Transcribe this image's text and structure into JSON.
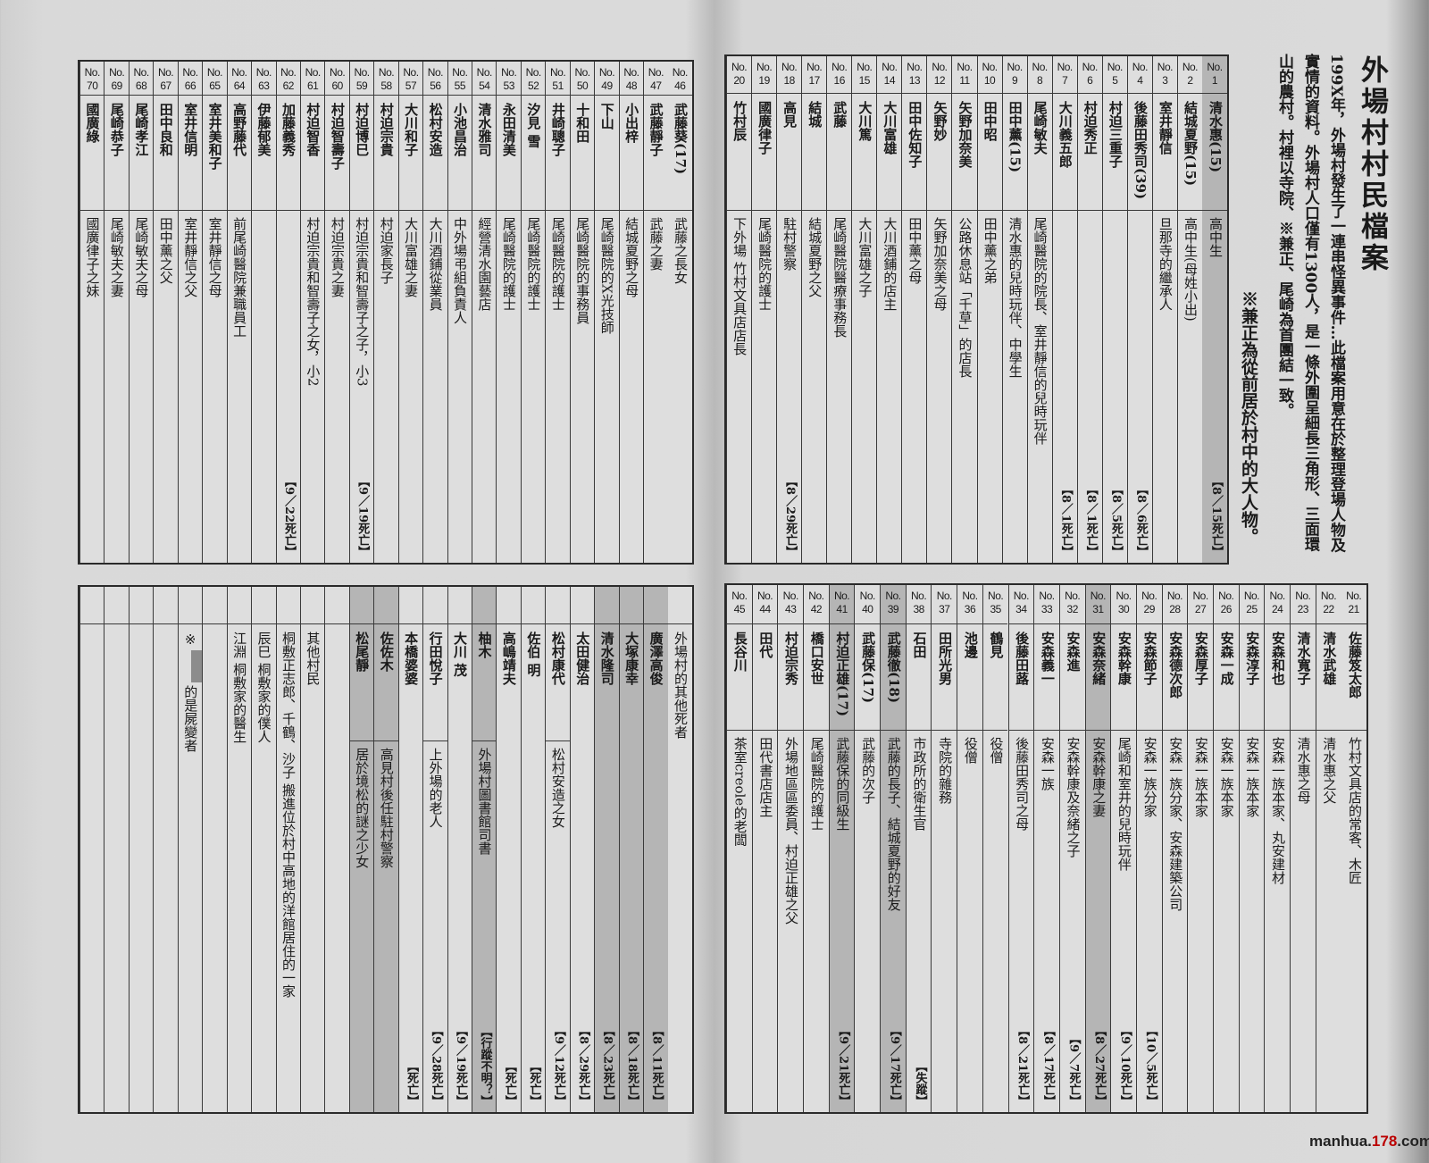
{
  "header": {
    "title": "外場村村民檔案",
    "intro": "199X年，外場村發生了一連串怪異事件…此檔案用意在於整理登場人物及實情的資料。外場村人口僅有1300人，是一條外圍呈細長三角形、三面環山的農村。村裡以寺院、※兼正、尾崎為首團結一致。",
    "note": "※兼正為從前居於村中的大人物。"
  },
  "colors": {
    "shaded": "#b5b5b5",
    "paper": "#dadada",
    "line": "#3a3a3a"
  },
  "tables": {
    "top_right": [
      {
        "no": "No.\n1",
        "name": "清水惠(15)",
        "role": "高中生",
        "death": "【8／15死亡】",
        "shaded": true
      },
      {
        "no": "No.\n2",
        "name": "結城夏野(15)",
        "role": "高中生(母姓小出)"
      },
      {
        "no": "No.\n3",
        "name": "室井靜信",
        "role": "旦那寺的繼承人"
      },
      {
        "no": "No.\n4",
        "name": "後藤田秀司(39)",
        "role": "",
        "death": "【8／6死亡】"
      },
      {
        "no": "No.\n5",
        "name": "村迫三重子",
        "role": "",
        "death": "【8／5死亡】"
      },
      {
        "no": "No.\n6",
        "name": "村迫秀正",
        "role": "",
        "death": "【8／1死亡】"
      },
      {
        "no": "No.\n7",
        "name": "大川義五郎",
        "role": "",
        "death": "【8／1死亡】"
      },
      {
        "no": "No.\n8",
        "name": "尾崎敏夫",
        "role": "尾崎醫院的院長、室井靜信的兒時玩伴"
      },
      {
        "no": "No.\n9",
        "name": "田中薰(15)",
        "role": "清水惠的兒時玩伴、中學生"
      },
      {
        "no": "No.\n10",
        "name": "田中昭",
        "role": "田中薰之弟"
      },
      {
        "no": "No.\n11",
        "name": "矢野加奈美",
        "role": "公路休息站「千草」的店長"
      },
      {
        "no": "No.\n12",
        "name": "矢野妙",
        "role": "矢野加奈美之母"
      },
      {
        "no": "No.\n13",
        "name": "田中佐知子",
        "role": "田中薰之母"
      },
      {
        "no": "No.\n14",
        "name": "大川富雄",
        "role": "大川酒鋪的店主"
      },
      {
        "no": "No.\n15",
        "name": "大川篤",
        "role": "大川富雄之子"
      },
      {
        "no": "No.\n16",
        "name": "武藤",
        "role": "尾崎醫院醫療事務長"
      },
      {
        "no": "No.\n17",
        "name": "結城",
        "role": "結城夏野之父"
      },
      {
        "no": "No.\n18",
        "name": "高見",
        "role": "駐村警察",
        "death": "【8／29死亡】"
      },
      {
        "no": "No.\n19",
        "name": "國廣律子",
        "role": "尾崎醫院的護士"
      },
      {
        "no": "No.\n20",
        "name": "竹村辰",
        "role": "下外場 竹村文具店店長"
      }
    ],
    "top_left": [
      {
        "no": "No.\n46",
        "name": "武藤葵(17)",
        "role": "武藤之長女"
      },
      {
        "no": "No.\n47",
        "name": "武藤靜子",
        "role": "武藤之妻"
      },
      {
        "no": "No.\n48",
        "name": "小出梓",
        "role": "結城夏野之母"
      },
      {
        "no": "No.\n49",
        "name": "下山",
        "role": "尾崎醫院的X光技師"
      },
      {
        "no": "No.\n50",
        "name": "十和田",
        "role": "尾崎醫院的事務員"
      },
      {
        "no": "No.\n51",
        "name": "井崎聰子",
        "role": "尾崎醫院的護士"
      },
      {
        "no": "No.\n52",
        "name": "汐見 雪",
        "role": "尾崎醫院的護士"
      },
      {
        "no": "No.\n53",
        "name": "永田清美",
        "role": "尾崎醫院的護士"
      },
      {
        "no": "No.\n54",
        "name": "清水雅司",
        "role": "經營清水園藝店"
      },
      {
        "no": "No.\n55",
        "name": "小池昌治",
        "role": "中外場弔組負責人"
      },
      {
        "no": "No.\n56",
        "name": "松村安造",
        "role": "大川酒鋪從業員"
      },
      {
        "no": "No.\n57",
        "name": "大川和子",
        "role": "大川富雄之妻"
      },
      {
        "no": "No.\n58",
        "name": "村迫宗貴",
        "role": "村迫家長子"
      },
      {
        "no": "No.\n59",
        "name": "村迫博巳",
        "role": "村迫宗貴和智壽子之子，小3",
        "death": "【9／19死亡】"
      },
      {
        "no": "No.\n60",
        "name": "村迫智壽子",
        "role": "村迫宗貴之妻"
      },
      {
        "no": "No.\n61",
        "name": "村迫智香",
        "role": "村迫宗貴和智壽子之女，小2"
      },
      {
        "no": "No.\n62",
        "name": "加藤義秀",
        "role": "",
        "death": "【9／22死亡】"
      },
      {
        "no": "No.\n63",
        "name": "伊藤郁美",
        "role": ""
      },
      {
        "no": "No.\n64",
        "name": "高野藤代",
        "role": "前尾崎醫院兼職員工"
      },
      {
        "no": "No.\n65",
        "name": "室井美和子",
        "role": "室井靜信之母"
      },
      {
        "no": "No.\n66",
        "name": "室井信明",
        "role": "室井靜信之父"
      },
      {
        "no": "No.\n67",
        "name": "田中良和",
        "role": "田中薰之父"
      },
      {
        "no": "No.\n68",
        "name": "尾崎孝江",
        "role": "尾崎敏夫之母"
      },
      {
        "no": "No.\n69",
        "name": "尾崎恭子",
        "role": "尾崎敏夫之妻"
      },
      {
        "no": "No.\n70",
        "name": "國廣綠",
        "role": "國廣律子之妹"
      }
    ],
    "bottom_right": [
      {
        "no": "No.\n21",
        "name": "佐藤笈太郎",
        "role": "竹村文具店的常客、木匠"
      },
      {
        "no": "No.\n22",
        "name": "清水武雄",
        "role": "清水惠之父"
      },
      {
        "no": "No.\n23",
        "name": "清水寬子",
        "role": "清水惠之母"
      },
      {
        "no": "No.\n24",
        "name": "安森和也",
        "role": "安森一族本家、丸安建材"
      },
      {
        "no": "No.\n25",
        "name": "安森淳子",
        "role": "安森一族本家"
      },
      {
        "no": "No.\n26",
        "name": "安森一成",
        "role": "安森一族本家"
      },
      {
        "no": "No.\n27",
        "name": "安森厚子",
        "role": "安森一族本家"
      },
      {
        "no": "No.\n28",
        "name": "安森德次郎",
        "role": "安森一族分家、安森建築公司"
      },
      {
        "no": "No.\n29",
        "name": "安森節子",
        "role": "安森一族分家",
        "death": "【10／5死亡】"
      },
      {
        "no": "No.\n30",
        "name": "安森幹康",
        "role": "尾崎和室井的兒時玩伴",
        "death": "【9／10死亡】"
      },
      {
        "no": "No.\n31",
        "name": "安森奈緒",
        "role": "安森幹康之妻",
        "death": "【8／27死亡】",
        "shaded": true
      },
      {
        "no": "No.\n32",
        "name": "安森進",
        "role": "安森幹康及奈緒之子",
        "death": "【9／7死亡】"
      },
      {
        "no": "No.\n33",
        "name": "安森義一",
        "role": "安森一族",
        "death": "【8／17死亡】"
      },
      {
        "no": "No.\n34",
        "name": "後藤田蕗",
        "role": "後藤田秀司之母",
        "death": "【8／21死亡】"
      },
      {
        "no": "No.\n35",
        "name": "鶴見",
        "role": "役僧"
      },
      {
        "no": "No.\n36",
        "name": "池邊",
        "role": "役僧"
      },
      {
        "no": "No.\n37",
        "name": "田所光男",
        "role": "寺院的雜務"
      },
      {
        "no": "No.\n38",
        "name": "石田",
        "role": "市政所的衛生官",
        "death": "【失蹤】"
      },
      {
        "no": "No.\n39",
        "name": "武藤徹(18)",
        "role": "武藤的長子、結城夏野的好友",
        "death": "【9／17死亡】",
        "shaded": true
      },
      {
        "no": "No.\n40",
        "name": "武藤保(17)",
        "role": "武藤的次子"
      },
      {
        "no": "No.\n41",
        "name": "村迫正雄(17)",
        "role": "武藤保的同級生",
        "death": "【9／21死亡】",
        "shaded": true
      },
      {
        "no": "No.\n42",
        "name": "橋口安世",
        "role": "尾崎醫院的護士"
      },
      {
        "no": "No.\n43",
        "name": "村迫宗秀",
        "role": "外場地區區委員、村迫正雄之父"
      },
      {
        "no": "No.\n44",
        "name": "田代",
        "role": "田代書店店主"
      },
      {
        "no": "No.\n45",
        "name": "長谷川",
        "role": "茶室creole的老闆"
      }
    ],
    "bottom_left": [
      {
        "full": "外場村的其他死者"
      },
      {
        "name": "廣澤高俊",
        "role": "",
        "death": "【8／11死亡】",
        "shaded": true
      },
      {
        "name": "大塚康幸",
        "role": "",
        "death": "【8／18死亡】",
        "shaded": true
      },
      {
        "name": "清水隆司",
        "role": "",
        "death": "【8／23死亡】",
        "shaded": true
      },
      {
        "name": "太田健治",
        "role": "",
        "death": "【8／29死亡】"
      },
      {
        "name": "松村康代",
        "role": "松村安造之女",
        "death": "【9／12死亡】"
      },
      {
        "name": "佐伯 明",
        "role": "",
        "death": "【死亡】"
      },
      {
        "name": "高嶋靖夫",
        "role": "",
        "death": "【死亡】"
      },
      {
        "name": "柚木",
        "role": "外場村圖書館司書",
        "death": "【行蹤不明？】",
        "shaded": true
      },
      {
        "name": "大川 茂",
        "role": "",
        "death": "【9／19死亡】"
      },
      {
        "name": "行田悅子",
        "role": "上外場的老人",
        "death": "【9／28死亡】"
      },
      {
        "name": "本橋婆婆",
        "role": "",
        "death": "【死亡】"
      },
      {
        "name": "佐佐木",
        "role": "高見村後任駐村警察",
        "shaded": true
      },
      {
        "name": "松尾靜",
        "role": "居於境松的謎之少女",
        "shaded": true
      },
      {},
      {
        "full": "其他村民"
      },
      {
        "full": "桐敷正志郎、千鶴、沙子 搬進位於村中高地的洋館居住的一家"
      },
      {
        "full": "辰巳 桐敷家的僕人"
      },
      {
        "full": "江淵 桐敷家的醫生"
      },
      {},
      {
        "note_prefix": "※",
        "note_suffix": "的是屍變者"
      },
      {},
      {},
      {},
      {}
    ]
  },
  "watermark": {
    "prefix": "manhua.",
    "mid": "178",
    "suffix": ".com"
  }
}
